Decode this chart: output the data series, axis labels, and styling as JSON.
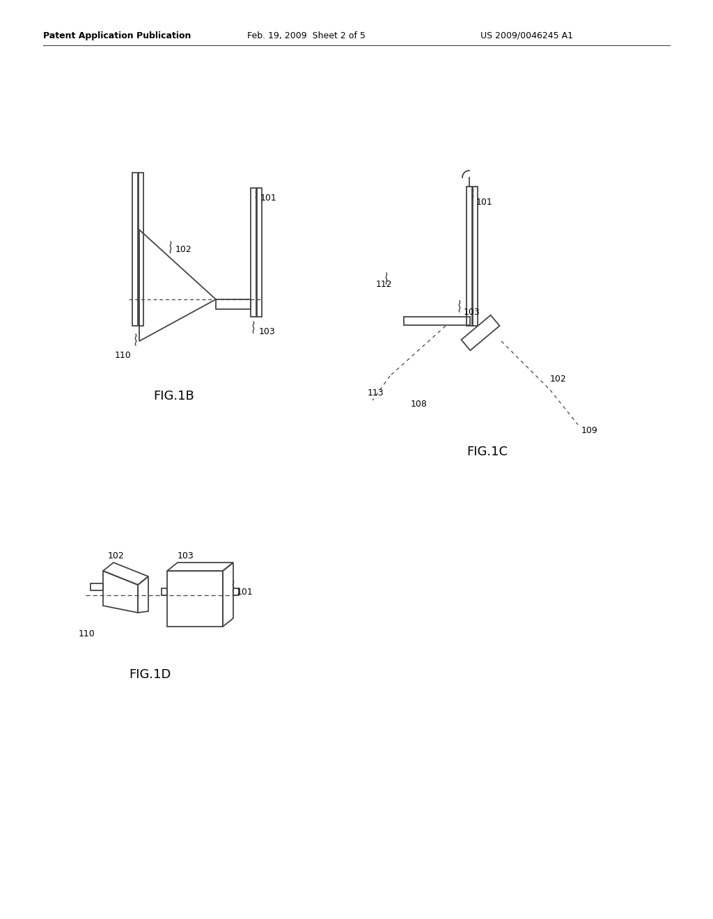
{
  "background_color": "#ffffff",
  "line_color": "#444444",
  "text_color": "#000000",
  "header_left": "Patent Application Publication",
  "header_center": "Feb. 19, 2009  Sheet 2 of 5",
  "header_right": "US 2009/0046245 A1",
  "fig1b_label": "FIG.1B",
  "fig1c_label": "FIG.1C",
  "fig1d_label": "FIG.1D"
}
